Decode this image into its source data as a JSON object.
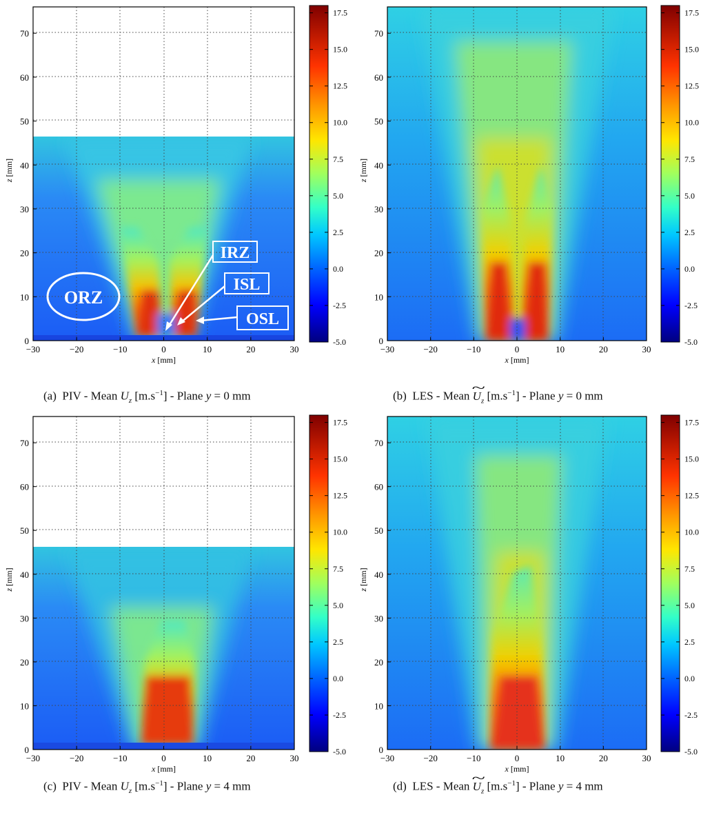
{
  "colorbar": {
    "ticks": [
      "17.5",
      "15.0",
      "12.5",
      "10.0",
      "7.5",
      "5.0",
      "2.5",
      "0.0",
      "-2.5",
      "-5.0"
    ],
    "colormap": "jet",
    "min": -5.0,
    "max": 18.0
  },
  "captions": [
    {
      "id": "a",
      "prefix": "(a)",
      "method": "PIV - Mean",
      "symbol": "U",
      "sub": "z",
      "unit": "[m.s",
      "unit_exp": "−1",
      "unit_end": "]",
      "plane": "- Plane",
      "var": "y",
      "value": "= 0 mm",
      "tilde": false
    },
    {
      "id": "b",
      "prefix": "(b)",
      "method": "LES - Mean",
      "symbol": "U",
      "sub": "z",
      "unit": "[m.s",
      "unit_exp": "−1",
      "unit_end": "]",
      "plane": "- Plane",
      "var": "y",
      "value": "= 0 mm",
      "tilde": true
    },
    {
      "id": "c",
      "prefix": "(c)",
      "method": "PIV - Mean",
      "symbol": "U",
      "sub": "z",
      "unit": "[m.s",
      "unit_exp": "−1",
      "unit_end": "]",
      "plane": "- Plane",
      "var": "y",
      "value": "= 4 mm",
      "tilde": false
    },
    {
      "id": "d",
      "prefix": "(d)",
      "method": "LES - Mean",
      "symbol": "U",
      "sub": "z",
      "unit": "[m.s",
      "unit_exp": "−1",
      "unit_end": "]",
      "plane": "- Plane",
      "var": "y",
      "value": "= 4 mm",
      "tilde": true
    }
  ],
  "annotations": {
    "orz": "ORZ",
    "irz": "IRZ",
    "isl": "ISL",
    "osl": "OSL"
  },
  "chart_data": [
    {
      "type": "heatmap",
      "panel": "a",
      "xlabel": "x [mm]",
      "ylabel": "z [mm]",
      "xlim": [
        -30,
        30
      ],
      "ylim": [
        0,
        76
      ],
      "xticks": [
        "−30",
        "−20",
        "−10",
        "0",
        "10",
        "20",
        "30"
      ],
      "yticks": [
        "0",
        "10",
        "20",
        "30",
        "40",
        "50",
        "60",
        "70"
      ],
      "data_extent_z": 46.5,
      "peak_jets_x": [
        -3,
        3
      ],
      "peak_value": 15.0,
      "grid": true
    },
    {
      "type": "heatmap",
      "panel": "b",
      "xlabel": "x [mm]",
      "ylabel": "z [mm]",
      "xlim": [
        -30,
        30
      ],
      "ylim": [
        0,
        76
      ],
      "xticks": [
        "−30",
        "−20",
        "−10",
        "0",
        "10",
        "20",
        "30"
      ],
      "yticks": [
        "0",
        "10",
        "20",
        "30",
        "40",
        "50",
        "60",
        "70"
      ],
      "data_extent_z": 76,
      "peak_jets_x": [
        -4,
        4
      ],
      "peak_value": 15.0,
      "grid": true
    },
    {
      "type": "heatmap",
      "panel": "c",
      "xlabel": "x [mm]",
      "ylabel": "z [mm]",
      "xlim": [
        -30,
        30
      ],
      "ylim": [
        0,
        76
      ],
      "xticks": [
        "−30",
        "−20",
        "−10",
        "0",
        "10",
        "20",
        "30"
      ],
      "yticks": [
        "0",
        "10",
        "20",
        "30",
        "40",
        "50",
        "60",
        "70"
      ],
      "data_extent_z": 46.5,
      "peak_jets_x": [
        0
      ],
      "peak_value": 15.0,
      "grid": true
    },
    {
      "type": "heatmap",
      "panel": "d",
      "xlabel": "x [mm]",
      "ylabel": "z [mm]",
      "xlim": [
        -30,
        30
      ],
      "ylim": [
        0,
        76
      ],
      "xticks": [
        "−30",
        "−20",
        "−10",
        "0",
        "10",
        "20",
        "30"
      ],
      "yticks": [
        "0",
        "10",
        "20",
        "30",
        "40",
        "50",
        "60",
        "70"
      ],
      "data_extent_z": 76,
      "peak_jets_x": [
        0
      ],
      "peak_value": 15.0,
      "grid": true
    }
  ]
}
